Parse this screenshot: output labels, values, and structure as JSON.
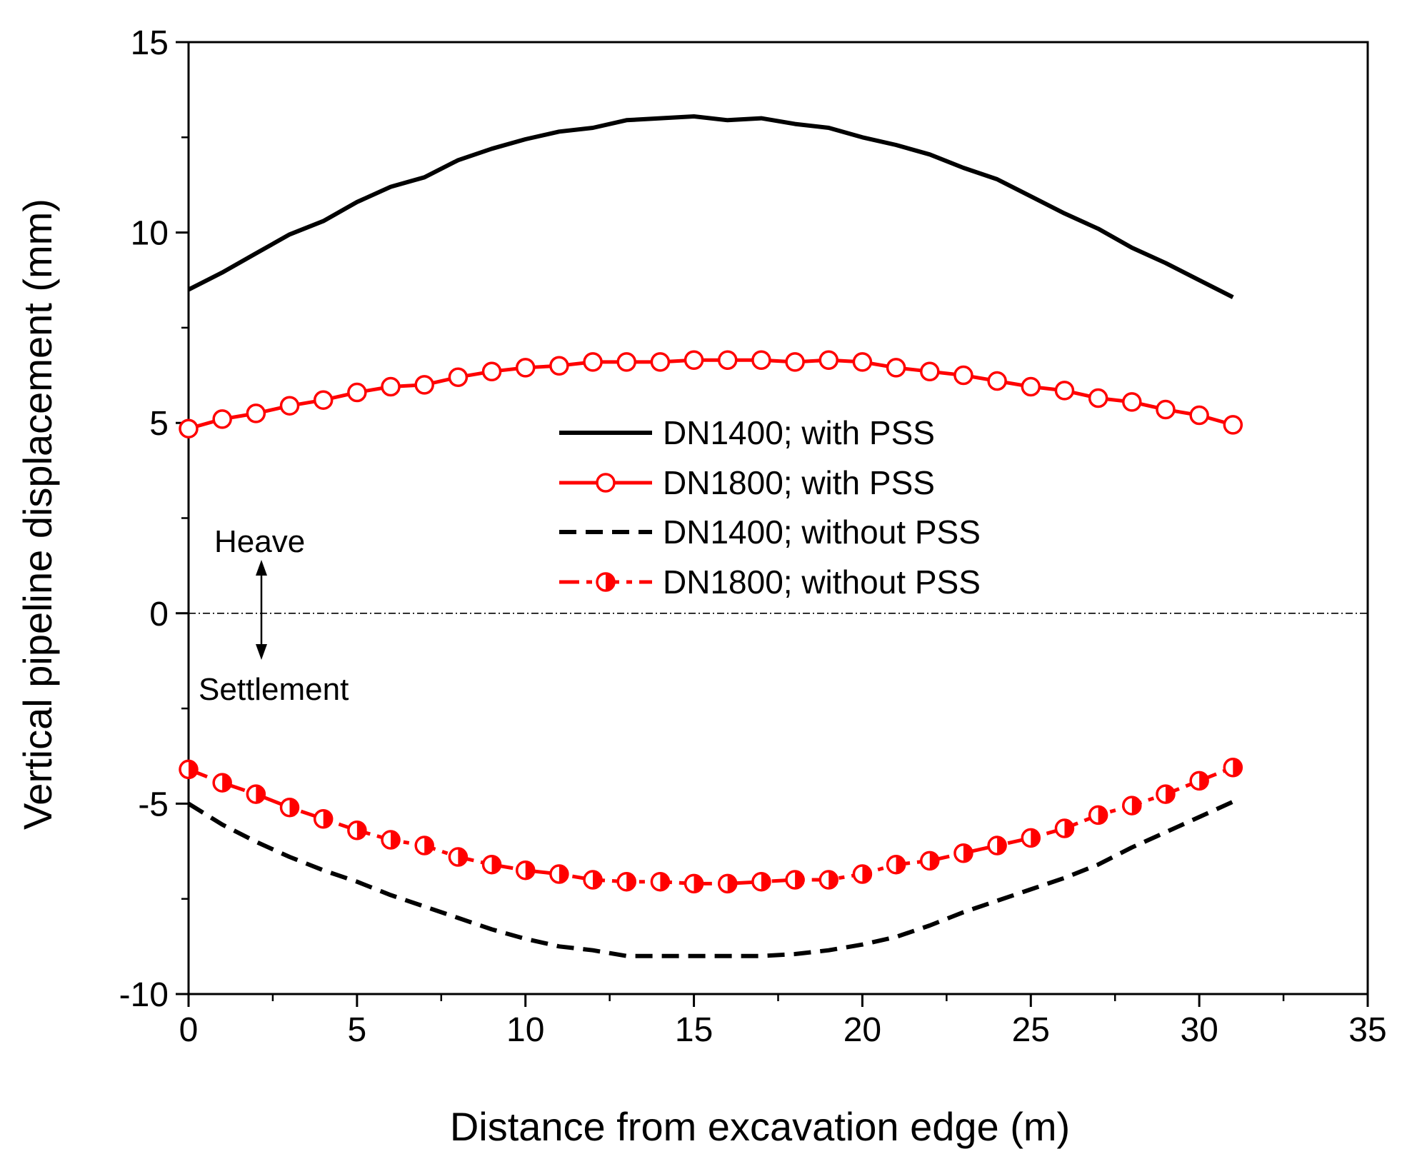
{
  "chart_data": {
    "type": "line",
    "title": "",
    "xlabel": "Distance from excavation edge (m)",
    "ylabel": "Vertical pipeline displacement (mm)",
    "xlim": [
      0,
      35
    ],
    "ylim": [
      -10,
      15
    ],
    "xticks": [
      0,
      5,
      10,
      15,
      20,
      25,
      30,
      35
    ],
    "yticks": [
      -10,
      -5,
      0,
      5,
      10,
      15
    ],
    "grid": false,
    "legend_position": "center-right",
    "reference_line": {
      "y": 0,
      "style": "dash-dot"
    },
    "annotations": {
      "up": "Heave",
      "down": "Settlement"
    },
    "colors": {
      "black": "#000000",
      "red": "#ff0000"
    },
    "series": [
      {
        "name": "DN1400; with PSS",
        "color": "#000000",
        "style": "solid",
        "marker": "none",
        "x": [
          0,
          1,
          2,
          3,
          4,
          5,
          6,
          7,
          8,
          9,
          10,
          11,
          12,
          13,
          14,
          15,
          16,
          17,
          18,
          19,
          20,
          21,
          22,
          23,
          24,
          25,
          26,
          27,
          28,
          29,
          30,
          31
        ],
        "y": [
          8.5,
          8.95,
          9.45,
          9.95,
          10.3,
          10.8,
          11.2,
          11.45,
          11.9,
          12.2,
          12.45,
          12.65,
          12.75,
          12.95,
          13.0,
          13.05,
          12.95,
          13.0,
          12.85,
          12.75,
          12.5,
          12.3,
          12.05,
          11.7,
          11.4,
          10.95,
          10.5,
          10.1,
          9.6,
          9.2,
          8.75,
          8.3
        ]
      },
      {
        "name": "DN1800; with PSS",
        "color": "#ff0000",
        "style": "solid",
        "marker": "open-circle",
        "x": [
          0,
          1,
          2,
          3,
          4,
          5,
          6,
          7,
          8,
          9,
          10,
          11,
          12,
          13,
          14,
          15,
          16,
          17,
          18,
          19,
          20,
          21,
          22,
          23,
          24,
          25,
          26,
          27,
          28,
          29,
          30,
          31
        ],
        "y": [
          4.85,
          5.1,
          5.25,
          5.45,
          5.6,
          5.8,
          5.95,
          6.0,
          6.2,
          6.35,
          6.45,
          6.5,
          6.6,
          6.6,
          6.6,
          6.65,
          6.65,
          6.65,
          6.6,
          6.65,
          6.6,
          6.45,
          6.35,
          6.25,
          6.1,
          5.95,
          5.85,
          5.65,
          5.55,
          5.35,
          5.2,
          4.95
        ]
      },
      {
        "name": "DN1400; without PSS",
        "color": "#000000",
        "style": "dashed",
        "marker": "none",
        "x": [
          0,
          1,
          2,
          3,
          4,
          5,
          6,
          7,
          8,
          9,
          10,
          11,
          12,
          13,
          14,
          15,
          16,
          17,
          18,
          19,
          20,
          21,
          22,
          23,
          24,
          25,
          26,
          27,
          28,
          29,
          30,
          31
        ],
        "y": [
          -5.0,
          -5.55,
          -6.0,
          -6.4,
          -6.75,
          -7.05,
          -7.4,
          -7.7,
          -8.0,
          -8.3,
          -8.55,
          -8.75,
          -8.85,
          -9.0,
          -9.0,
          -9.0,
          -9.0,
          -9.0,
          -8.95,
          -8.85,
          -8.7,
          -8.5,
          -8.2,
          -7.85,
          -7.55,
          -7.25,
          -6.95,
          -6.6,
          -6.15,
          -5.75,
          -5.35,
          -4.95
        ]
      },
      {
        "name": "DN1800; without PSS",
        "color": "#ff0000",
        "style": "dash-dot",
        "marker": "half-filled-circle",
        "x": [
          0,
          1,
          2,
          3,
          4,
          5,
          6,
          7,
          8,
          9,
          10,
          11,
          12,
          13,
          14,
          15,
          16,
          17,
          18,
          19,
          20,
          21,
          22,
          23,
          24,
          25,
          26,
          27,
          28,
          29,
          30,
          31
        ],
        "y": [
          -4.1,
          -4.45,
          -4.75,
          -5.1,
          -5.4,
          -5.7,
          -5.95,
          -6.1,
          -6.4,
          -6.6,
          -6.75,
          -6.85,
          -7.0,
          -7.05,
          -7.05,
          -7.1,
          -7.1,
          -7.05,
          -7.0,
          -7.0,
          -6.85,
          -6.6,
          -6.5,
          -6.3,
          -6.1,
          -5.9,
          -5.65,
          -5.3,
          -5.05,
          -4.75,
          -4.4,
          -4.05
        ]
      }
    ]
  }
}
